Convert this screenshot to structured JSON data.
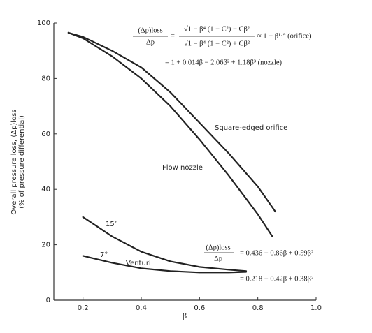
{
  "chart_data": {
    "type": "line",
    "xlabel": "β",
    "ylabel": [
      "Overall pressure loss, (Δp)loss",
      "(% of pressure differential)"
    ],
    "xlim": [
      0.1,
      1.0
    ],
    "ylim": [
      0,
      100
    ],
    "xticks": [
      0.2,
      0.4,
      0.6,
      0.8,
      {
        "value": 1,
        "label": "1.0"
      }
    ],
    "yticks": [
      0,
      20,
      40,
      60,
      80,
      100
    ],
    "color": "#222222",
    "series": [
      {
        "name": "Square-edged orifice",
        "x": [
          0.15,
          0.2,
          0.3,
          0.4,
          0.5,
          0.6,
          0.7,
          0.8,
          0.86
        ],
        "values": [
          96.5,
          95,
          90,
          84,
          75,
          64,
          53,
          41,
          32
        ]
      },
      {
        "name": "Flow nozzle",
        "x": [
          0.15,
          0.2,
          0.3,
          0.4,
          0.5,
          0.6,
          0.7,
          0.8,
          0.85
        ],
        "values": [
          96.5,
          94.5,
          88,
          80,
          70,
          58,
          45,
          31,
          23
        ]
      },
      {
        "name": "15°",
        "x": [
          0.2,
          0.3,
          0.4,
          0.5,
          0.6,
          0.7,
          0.76
        ],
        "values": [
          30,
          23,
          17.5,
          14,
          12,
          11,
          10.5
        ]
      },
      {
        "name": "7°",
        "x": [
          0.2,
          0.3,
          0.4,
          0.5,
          0.6,
          0.7,
          0.76
        ],
        "values": [
          16,
          13.5,
          11.5,
          10.5,
          10,
          10,
          10.2
        ]
      }
    ],
    "venturi_label": "Venturi",
    "formula_top": {
      "loss": "(Δp)loss",
      "dp": "Δp",
      "eq": "=",
      "num": "√1 − β⁴ (1 − C²) − Cβ²",
      "den": "√1 − β⁴ (1 − C²) + Cβ²",
      "orifice": "≈ 1 − β¹·⁹  (orifice)",
      "nozzle": "= 1 + 0.014β − 2.06β² + 1.18β³  (nozzle)"
    },
    "formula_venturi": {
      "loss": "(Δp)loss",
      "dp": "Δp",
      "fifteen": "= 0.436 − 0.86β + 0.59β²",
      "seven": "= 0.218 − 0.42β + 0.38β²"
    }
  }
}
